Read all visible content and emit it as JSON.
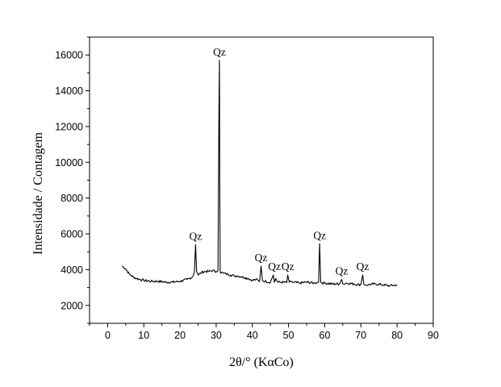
{
  "chart_data": {
    "type": "line",
    "xlabel": "2θ/° (KαCo)",
    "ylabel": "Intensidade / Contagem",
    "xlim": [
      -5,
      90
    ],
    "ylim": [
      1000,
      17000
    ],
    "x_ticks": [
      0,
      10,
      20,
      30,
      40,
      50,
      60,
      70,
      80,
      90
    ],
    "y_ticks": [
      2000,
      4000,
      6000,
      8000,
      10000,
      12000,
      14000,
      16000
    ],
    "x_tick_labels": [
      "0",
      "10",
      "20",
      "30",
      "40",
      "50",
      "60",
      "70",
      "80",
      "90"
    ],
    "y_tick_labels": [
      "2000",
      "4000",
      "6000",
      "8000",
      "10000",
      "12000",
      "14000",
      "16000"
    ],
    "legend": "none",
    "grid": false,
    "line_color": "#000000",
    "series": [
      {
        "x": [
          4.0,
          5.0,
          6.0,
          7.0,
          8.0,
          9.0,
          10.0,
          12.0,
          14.0,
          16.0,
          18.0,
          20.0,
          22.0,
          23.5,
          24.0,
          24.3,
          24.6,
          25.0,
          26.0,
          27.0,
          28.0,
          29.0,
          30.0,
          30.5,
          30.75,
          30.9,
          31.0,
          31.1,
          31.25,
          31.5,
          32.0,
          33.0,
          34.0,
          35.0,
          36.0,
          37.0,
          38.0,
          39.0,
          40.0,
          41.0,
          42.0,
          42.4,
          42.8,
          43.5,
          45.0,
          45.8,
          46.1,
          46.5,
          47.0,
          48.0,
          49.5,
          49.8,
          50.2,
          51.0,
          53.0,
          55.0,
          57.0,
          58.3,
          58.6,
          58.9,
          59.3,
          60.0,
          62.0,
          64.0,
          64.7,
          65.0,
          65.3,
          66.0,
          68.0,
          70.0,
          70.5,
          70.8,
          71.1,
          72.0,
          74.0,
          76.0,
          78.0,
          80.0
        ],
        "y": [
          4200,
          4050,
          3750,
          3600,
          3500,
          3450,
          3400,
          3350,
          3350,
          3300,
          3300,
          3350,
          3450,
          3600,
          3900,
          5400,
          3900,
          3700,
          3850,
          3900,
          3900,
          3950,
          3900,
          3950,
          12400,
          15700,
          8900,
          3900,
          3800,
          3850,
          3800,
          3750,
          3700,
          3650,
          3650,
          3600,
          3550,
          3500,
          3400,
          3450,
          3350,
          4200,
          3400,
          3350,
          3300,
          3700,
          3300,
          3500,
          3300,
          3300,
          3280,
          3700,
          3300,
          3300,
          3250,
          3300,
          3250,
          3300,
          5450,
          3300,
          3250,
          3250,
          3200,
          3200,
          3450,
          3200,
          3200,
          3250,
          3200,
          3150,
          3700,
          3200,
          3150,
          3150,
          3200,
          3150,
          3100,
          3150
        ]
      }
    ],
    "annotations": [
      {
        "text": "Qz",
        "x": 24.3,
        "y": 5400
      },
      {
        "text": "Qz",
        "x": 30.9,
        "y": 15700
      },
      {
        "text": "Qz",
        "x": 42.4,
        "y": 4200
      },
      {
        "text": "Qz",
        "x": 46.1,
        "y": 3700
      },
      {
        "text": "Qz",
        "x": 49.8,
        "y": 3700
      },
      {
        "text": "Qz",
        "x": 58.6,
        "y": 5450
      },
      {
        "text": "Qz",
        "x": 64.7,
        "y": 3450
      },
      {
        "text": "Qz",
        "x": 70.5,
        "y": 3700
      }
    ]
  }
}
